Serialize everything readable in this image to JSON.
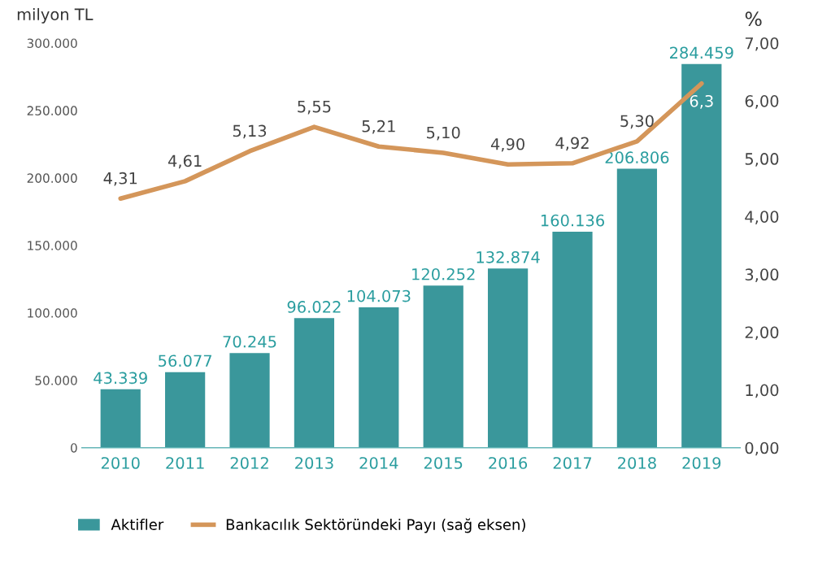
{
  "chart_data": {
    "type": "bar",
    "ylabel": "milyon TL",
    "y2label": "%",
    "categories": [
      "2010",
      "2011",
      "2012",
      "2013",
      "2014",
      "2015",
      "2016",
      "2017",
      "2018",
      "2019"
    ],
    "series": [
      {
        "name": "Aktifler",
        "color": "#3a979b",
        "values": [
          43339,
          56077,
          70245,
          96022,
          104073,
          120252,
          132874,
          160136,
          206806,
          284459
        ],
        "value_labels": [
          "43.339",
          "56.077",
          "70.245",
          "96.022",
          "104.073",
          "120.252",
          "132.874",
          "160.136",
          "206.806",
          "284.459"
        ]
      },
      {
        "name": "Bankacılık Sektöründeki Payı (sağ eksen)",
        "type": "line",
        "axis": "y2",
        "color": "#d4965a",
        "values": [
          4.31,
          4.61,
          5.13,
          5.55,
          5.21,
          5.1,
          4.9,
          4.92,
          5.3,
          6.3
        ],
        "value_labels": [
          "4,31",
          "4,61",
          "5,13",
          "5,55",
          "5,21",
          "5,10",
          "4,90",
          "4,92",
          "5,30",
          "6,3"
        ]
      }
    ],
    "ylim": [
      0,
      300000
    ],
    "yticks": [
      0,
      {
        "value": 50000,
        "label": "50.000"
      },
      {
        "value": 100000,
        "label": "100.000"
      },
      {
        "value": 150000,
        "label": "150.000"
      },
      {
        "value": 200000,
        "label": "200.000"
      },
      {
        "value": 250000,
        "label": "250.000"
      },
      {
        "value": 300000,
        "label": "300.000"
      }
    ],
    "y2lim": [
      0,
      7
    ],
    "y2ticks": [
      {
        "value": 0,
        "label": "0,00"
      },
      {
        "value": 1,
        "label": "1,00"
      },
      {
        "value": 2,
        "label": "2,00"
      },
      {
        "value": 3,
        "label": "3,00"
      },
      {
        "value": 4,
        "label": "4,00"
      },
      {
        "value": 5,
        "label": "5,00"
      },
      {
        "value": 6,
        "label": "6,00"
      },
      {
        "value": 7,
        "label": "7,00"
      }
    ],
    "legend": "bottom",
    "marker": "none",
    "line_style": "solid"
  }
}
